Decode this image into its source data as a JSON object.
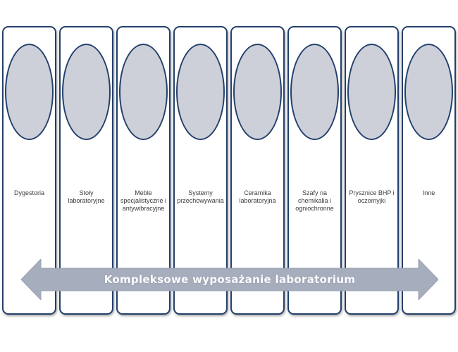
{
  "columns": [
    {
      "label": "Dygestoria"
    },
    {
      "label": "Stoły\nlaboratoryjne"
    },
    {
      "label": "Meble\nspecjalistyczne i\nantywibracyjne"
    },
    {
      "label": "Systemy\nprzechowywania"
    },
    {
      "label": "Ceramika\nlaboratoryjna"
    },
    {
      "label": "Szafy na\nchemikalia i\nogniochronne"
    },
    {
      "label": "Prysznice BHP i\noczomyjki"
    },
    {
      "label": "Inne"
    }
  ],
  "arrow": {
    "label": "Kompleksowe wyposażanie laboratorium"
  },
  "colors": {
    "border": "#24406b",
    "oval_fill": "#cdd0d9",
    "arrow_fill": "#a6adbd"
  }
}
